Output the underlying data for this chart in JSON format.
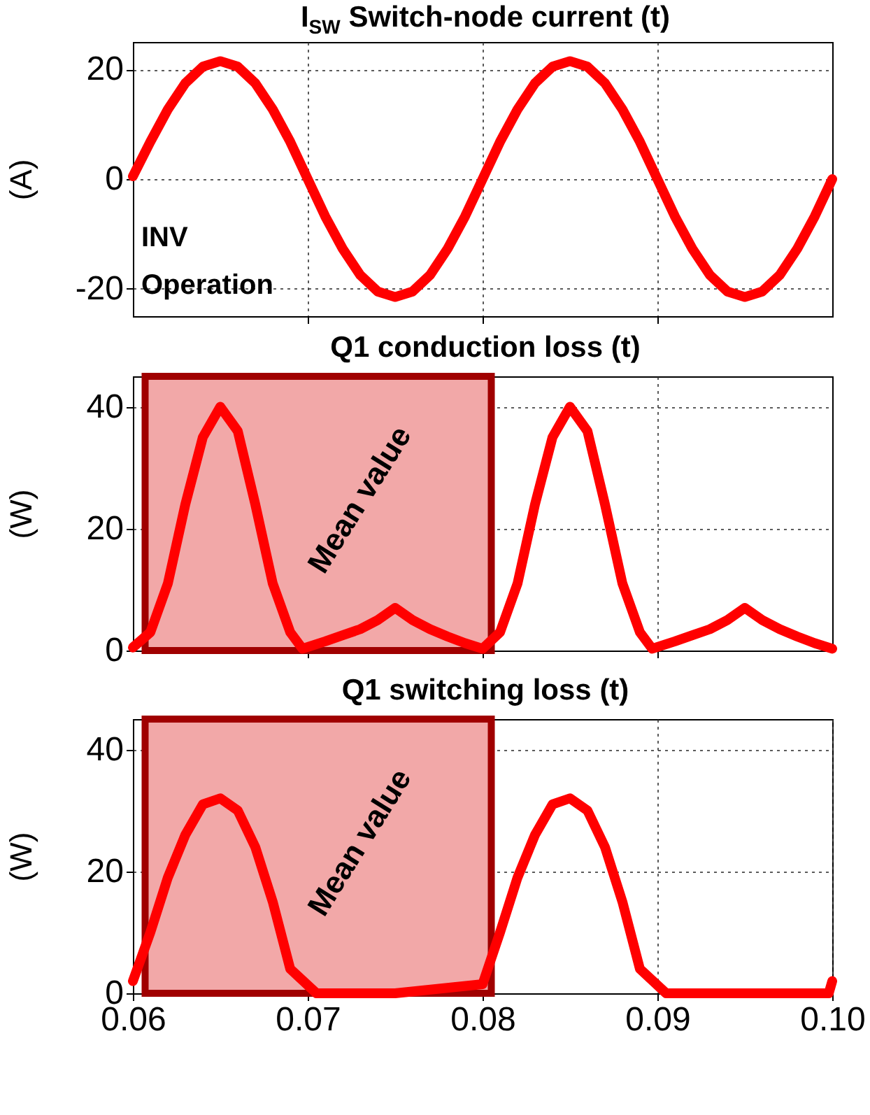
{
  "chart_data": [
    {
      "type": "line",
      "title": "I$_{SW}$ Switch-node current (t)",
      "ylabel": "(A)",
      "annotations": [
        "INV\nOperation"
      ],
      "xlim": [
        0.06,
        0.1
      ],
      "xticks": [
        0.07,
        0.08,
        0.09
      ],
      "ylim": [
        -25,
        25
      ],
      "yticks": [
        -20,
        0,
        20
      ],
      "grid": true,
      "tick_labels": "y",
      "x": [
        0.06,
        0.061,
        0.062,
        0.063,
        0.064,
        0.065,
        0.066,
        0.067,
        0.068,
        0.069,
        0.07,
        0.071,
        0.072,
        0.073,
        0.074,
        0.075,
        0.076,
        0.077,
        0.078,
        0.079,
        0.08,
        0.081,
        0.082,
        0.083,
        0.084,
        0.085,
        0.086,
        0.087,
        0.088,
        0.089,
        0.09,
        0.091,
        0.092,
        0.093,
        0.094,
        0.095,
        0.096,
        0.097,
        0.098,
        0.099,
        0.1
      ],
      "series": [
        {
          "color": "#ff0000",
          "values": [
            0.5,
            6.8,
            12.7,
            17.5,
            20.5,
            21.5,
            20.5,
            17.5,
            12.7,
            6.8,
            0,
            -6.8,
            -12.7,
            -17.5,
            -20.5,
            -21.5,
            -20.5,
            -17.5,
            -12.7,
            -6.8,
            0,
            6.8,
            12.7,
            17.5,
            20.5,
            21.5,
            20.5,
            17.5,
            12.7,
            6.8,
            0,
            -6.8,
            -12.7,
            -17.5,
            -20.5,
            -21.5,
            -20.5,
            -17.5,
            -12.7,
            -6.8,
            0
          ]
        }
      ]
    },
    {
      "type": "line",
      "title": "Q1 conduction loss (t)",
      "ylabel": "(W)",
      "xlim": [
        0.06,
        0.1
      ],
      "xticks": [
        0.07,
        0.08,
        0.09
      ],
      "ylim": [
        0,
        45
      ],
      "yticks": [
        0,
        20,
        40
      ],
      "grid": true,
      "tick_labels": "y",
      "bands": [
        {
          "axis": "x",
          "from": 0.0607,
          "to": 0.0805,
          "label": "Mean  value",
          "color": "#f2a8a8"
        }
      ],
      "x": [
        0.06,
        0.061,
        0.062,
        0.063,
        0.064,
        0.065,
        0.066,
        0.067,
        0.068,
        0.069,
        0.0697,
        0.071,
        0.072,
        0.073,
        0.074,
        0.075,
        0.076,
        0.077,
        0.078,
        0.079,
        0.08,
        0.081,
        0.082,
        0.083,
        0.084,
        0.085,
        0.086,
        0.087,
        0.088,
        0.089,
        0.0897,
        0.091,
        0.092,
        0.093,
        0.094,
        0.095,
        0.096,
        0.097,
        0.098,
        0.099,
        0.1
      ],
      "series": [
        {
          "color": "#ff0000",
          "values": [
            0.5,
            3,
            11,
            24,
            35,
            40,
            36,
            24,
            11,
            3,
            0.3,
            1.5,
            2.5,
            3.5,
            5,
            7,
            5,
            3.5,
            2.3,
            1.2,
            0.3,
            3,
            11,
            24,
            35,
            40,
            36,
            24,
            11,
            3,
            0.3,
            1.5,
            2.5,
            3.5,
            5,
            7,
            5,
            3.5,
            2.3,
            1.2,
            0.3
          ]
        }
      ]
    },
    {
      "type": "line",
      "title": "Q1 switching loss (t)",
      "ylabel": "(W)",
      "xlim": [
        0.06,
        0.1
      ],
      "xticks": [
        0.06,
        0.07,
        0.08,
        0.09,
        {
          "value": 0.1,
          "label": "0.10"
        }
      ],
      "ylim": [
        0,
        45
      ],
      "yticks": [
        0,
        20,
        40
      ],
      "grid": true,
      "bands": [
        {
          "axis": "x",
          "from": 0.0607,
          "to": 0.0805,
          "label": "Mean  value",
          "color": "#f2a8a8"
        }
      ],
      "x": [
        0.06,
        0.061,
        0.062,
        0.063,
        0.064,
        0.065,
        0.066,
        0.067,
        0.068,
        0.069,
        0.0705,
        0.075,
        0.08,
        0.081,
        0.082,
        0.083,
        0.084,
        0.085,
        0.086,
        0.087,
        0.088,
        0.089,
        0.0905,
        0.095,
        0.0998,
        0.1
      ],
      "series": [
        {
          "color": "#ff0000",
          "values": [
            2,
            10,
            19,
            26,
            31,
            32,
            30,
            24,
            15,
            4,
            0,
            0,
            1.5,
            10,
            19,
            26,
            31,
            32,
            30,
            24,
            15,
            4,
            0,
            0,
            0,
            2
          ]
        }
      ]
    }
  ]
}
